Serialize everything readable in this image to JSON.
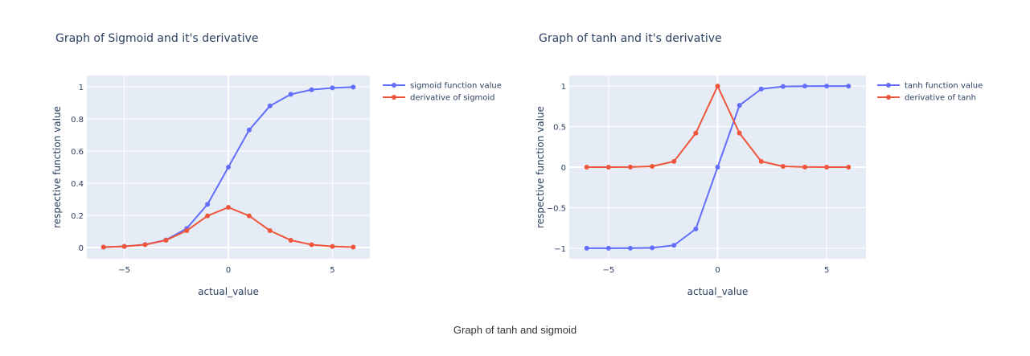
{
  "caption": "Graph of tanh and sigmoid",
  "colors": {
    "plot_bg": "#e5ecf6",
    "grid": "#ffffff",
    "text": "#2a3f5f",
    "series_blue": "#636efa",
    "series_red": "#ef553b"
  },
  "chart_data": [
    {
      "type": "line",
      "title": "Graph of Sigmoid and it's derivative",
      "xlabel": "actual_value",
      "ylabel": "respective function value",
      "xlim": [
        -6.8,
        6.8
      ],
      "ylim": [
        -0.07,
        1.07
      ],
      "xticks": [
        -5,
        0,
        5
      ],
      "xtick_labels": [
        "−5",
        "0",
        "5"
      ],
      "yticks": [
        0,
        0.2,
        0.4,
        0.6,
        0.8,
        1
      ],
      "ytick_labels": [
        "0",
        "0.2",
        "0.4",
        "0.6",
        "0.8",
        "1"
      ],
      "grid": true,
      "legend_position": "top-right outside",
      "x": [
        -6,
        -5,
        -4,
        -3,
        -2,
        -1,
        0,
        1,
        2,
        3,
        4,
        5,
        6
      ],
      "series": [
        {
          "name": "sigmoid function value",
          "color": "#636efa",
          "values": [
            0.0025,
            0.0067,
            0.018,
            0.047,
            0.119,
            0.269,
            0.5,
            0.731,
            0.881,
            0.953,
            0.982,
            0.993,
            0.998
          ]
        },
        {
          "name": "derivative of sigmoid",
          "color": "#ef553b",
          "values": [
            0.0025,
            0.0066,
            0.0177,
            0.0452,
            0.105,
            0.197,
            0.25,
            0.197,
            0.105,
            0.0452,
            0.0177,
            0.0066,
            0.0025
          ]
        }
      ]
    },
    {
      "type": "line",
      "title": "Graph of tanh and it's derivative",
      "xlabel": "actual_value",
      "ylabel": "respective function value",
      "xlim": [
        -6.8,
        6.8
      ],
      "ylim": [
        -1.13,
        1.13
      ],
      "xticks": [
        -5,
        0,
        5
      ],
      "xtick_labels": [
        "−5",
        "0",
        "5"
      ],
      "yticks": [
        -1,
        -0.5,
        0,
        0.5,
        1
      ],
      "ytick_labels": [
        "−1",
        "−0.5",
        "0",
        "0.5",
        "1"
      ],
      "grid": true,
      "legend_position": "top-right outside",
      "x": [
        -6,
        -5,
        -4,
        -3,
        -2,
        -1,
        0,
        1,
        2,
        3,
        4,
        5,
        6
      ],
      "series": [
        {
          "name": "tanh function value",
          "color": "#636efa",
          "values": [
            -1.0,
            -0.9999,
            -0.9993,
            -0.995,
            -0.964,
            -0.762,
            0,
            0.762,
            0.964,
            0.995,
            0.9993,
            0.9999,
            1.0
          ]
        },
        {
          "name": "derivative of tanh",
          "color": "#ef553b",
          "values": [
            0.0,
            0.0002,
            0.0013,
            0.0099,
            0.0707,
            0.42,
            1.0,
            0.42,
            0.0707,
            0.0099,
            0.0013,
            0.0002,
            0.0
          ]
        }
      ]
    }
  ]
}
